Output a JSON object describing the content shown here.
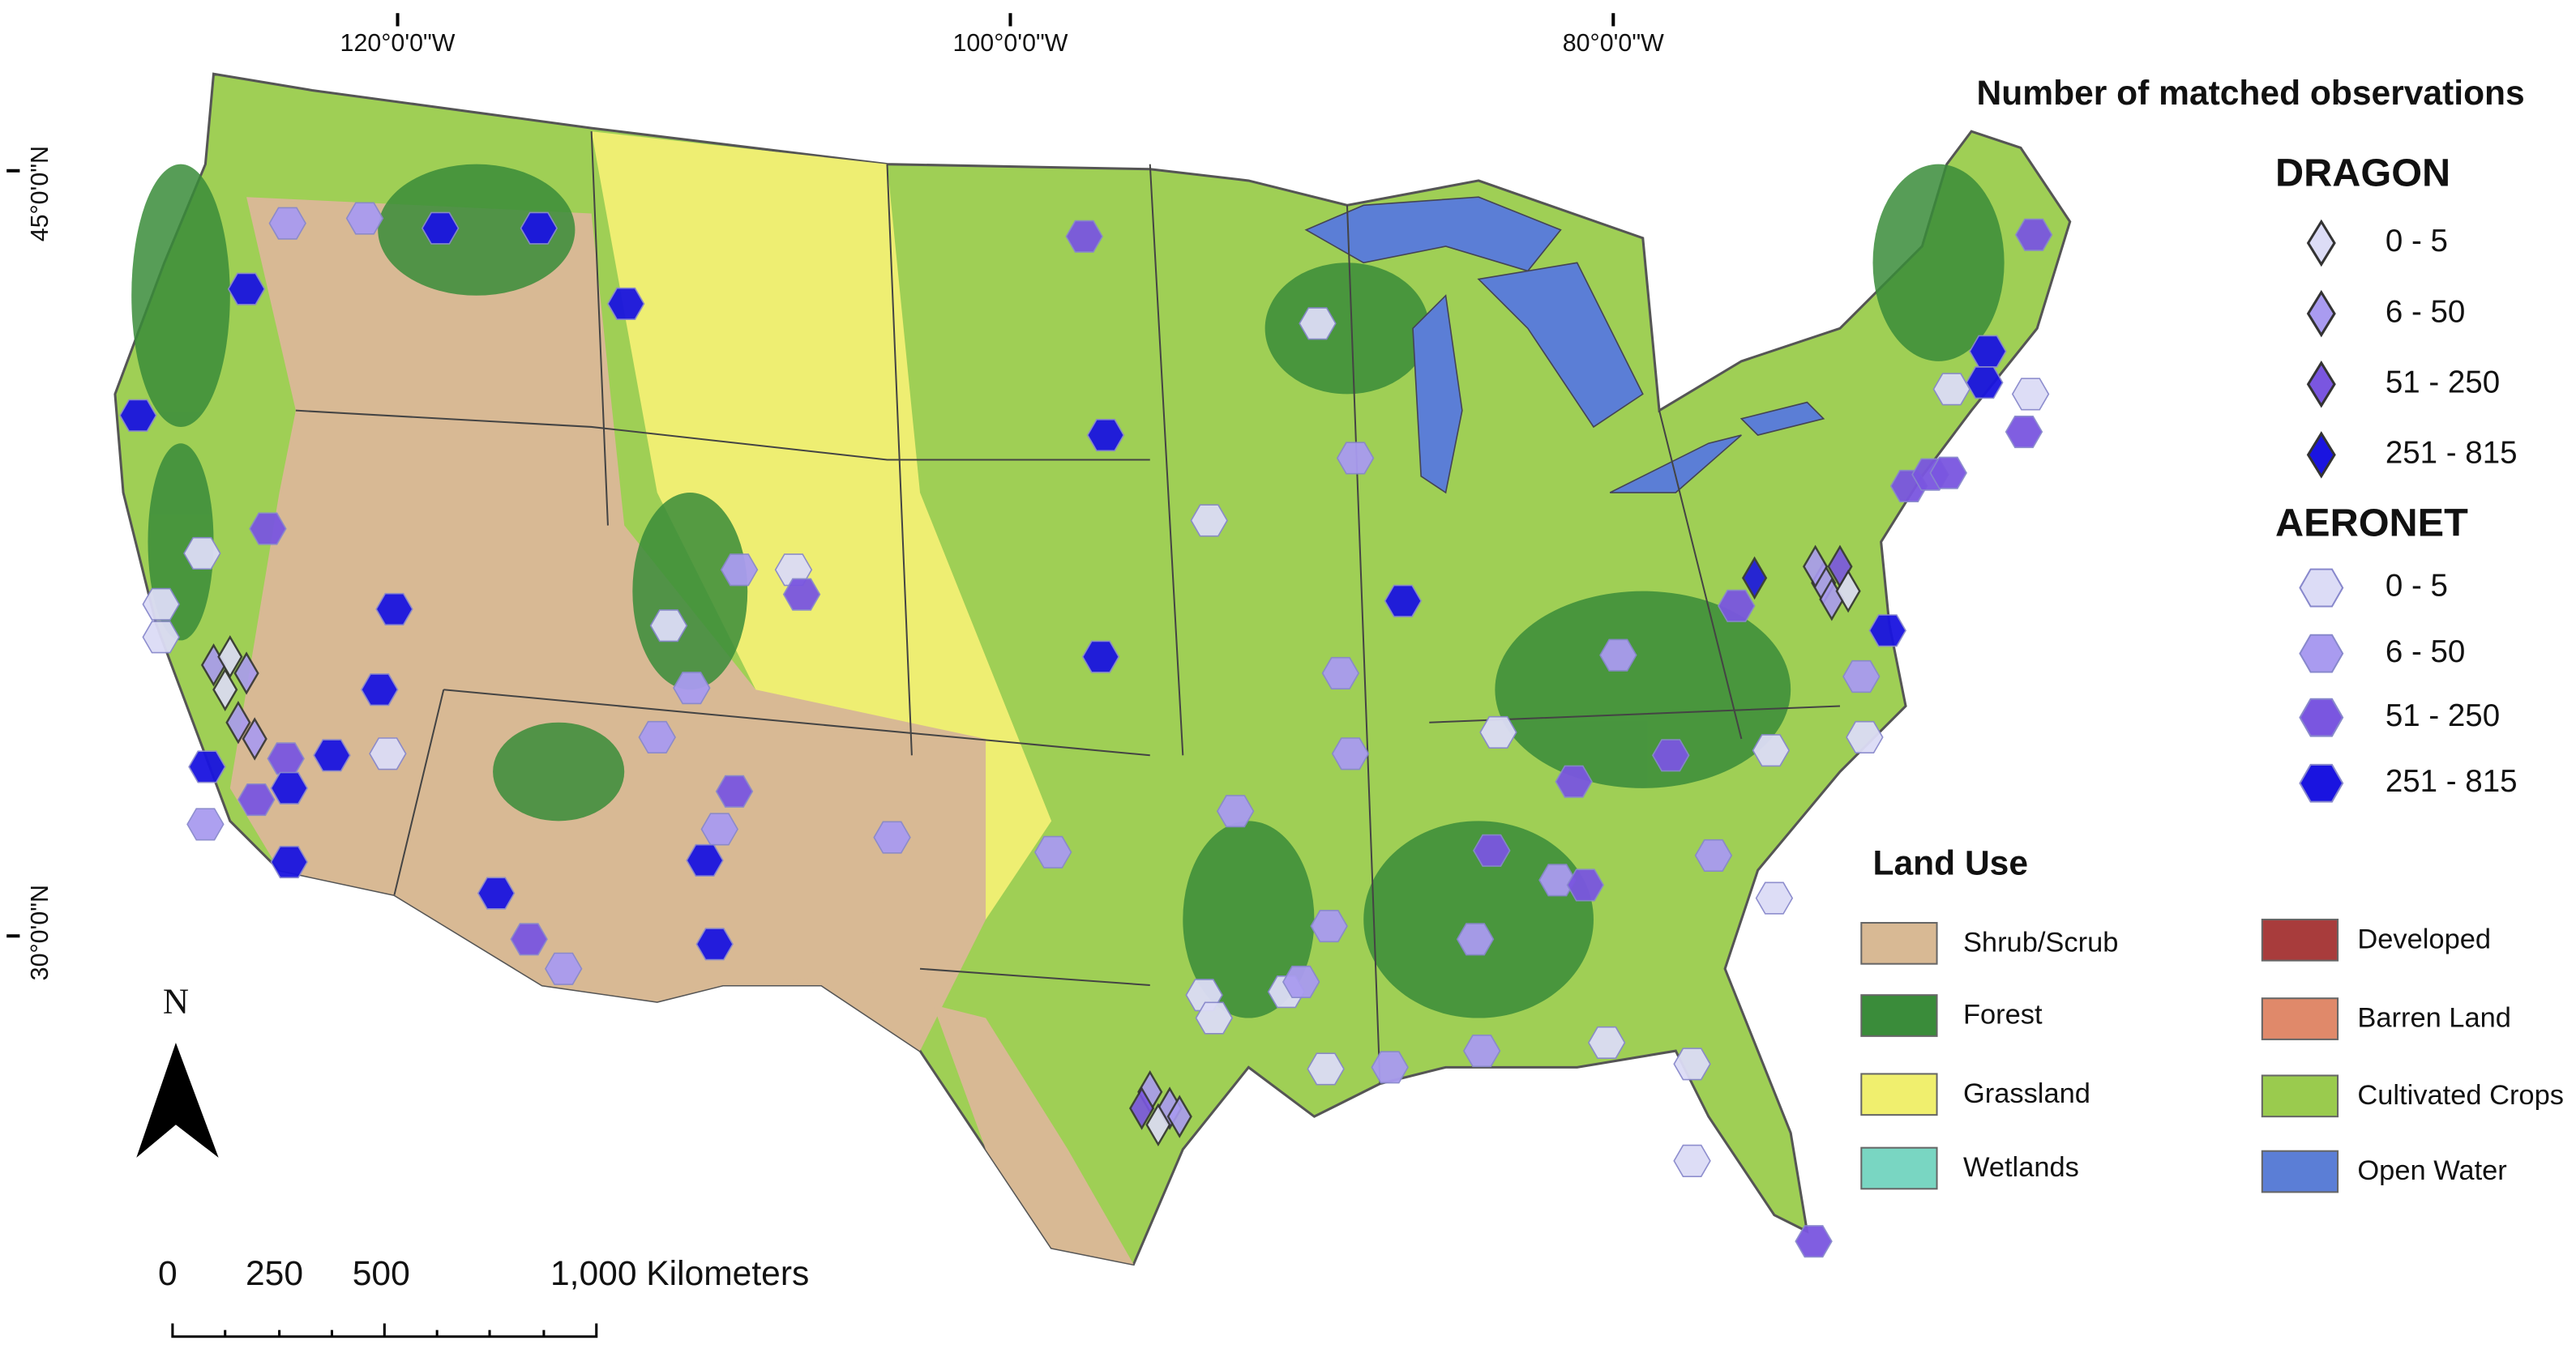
{
  "graticule": {
    "lon": [
      "120°0'0\"W",
      "100°0'0\"W",
      "80°0'0\"W"
    ],
    "lat": [
      "45°0'0\"N",
      "30°0'0\"N"
    ]
  },
  "legend": {
    "title": "Number of matched observations",
    "colors": [
      "#dcdcf6",
      "#a99bf0",
      "#7a56e0",
      "#1a14e0"
    ],
    "dragon": {
      "title": "DRAGON",
      "classes": [
        "0 - 5",
        "6 - 50",
        "51 - 250",
        "251 - 815"
      ]
    },
    "aeronet": {
      "title": "AERONET",
      "classes": [
        "0 - 5",
        "6 - 50",
        "51 - 250",
        "251 - 815"
      ]
    }
  },
  "land_use": {
    "title": "Land Use",
    "classes": [
      {
        "label": "Shrub/Scrub",
        "color": "#d8b994"
      },
      {
        "label": "Forest",
        "color": "#3a8c3a"
      },
      {
        "label": "Grassland",
        "color": "#f0ef6e"
      },
      {
        "label": "Wetlands",
        "color": "#79d6c2"
      },
      {
        "label": "Developed",
        "color": "#a83c3c"
      },
      {
        "label": "Barren Land",
        "color": "#e0896a"
      },
      {
        "label": "Cultivated Crops",
        "color": "#9acb4e"
      },
      {
        "label": "Open Water",
        "color": "#5b7ed6"
      }
    ]
  },
  "scale_bar": {
    "labels": [
      "0",
      "250",
      "500",
      "1,000 Kilometers"
    ]
  },
  "north_arrow": "N"
}
